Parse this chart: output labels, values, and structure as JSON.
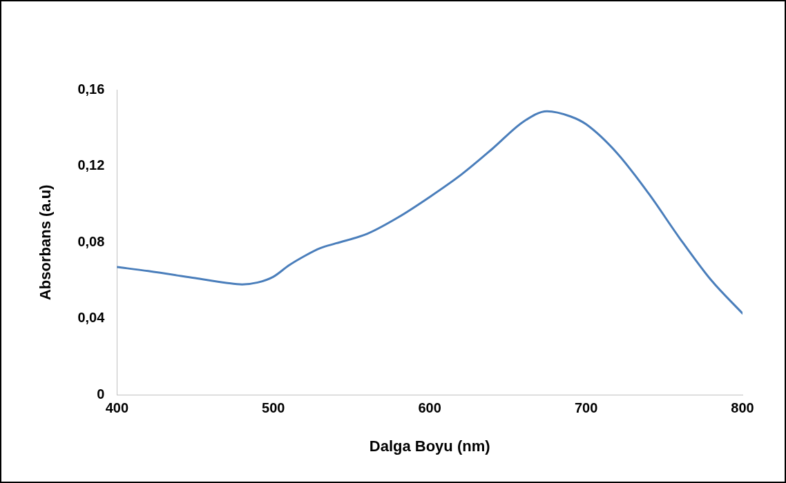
{
  "chart_data": {
    "type": "line",
    "xlabel": "Dalga Boyu (nm)",
    "ylabel": "Absorbans (a.u)",
    "x": [
      400,
      420,
      450,
      470,
      480,
      490,
      500,
      510,
      520,
      530,
      540,
      560,
      580,
      600,
      620,
      640,
      660,
      675,
      690,
      700,
      720,
      740,
      760,
      780,
      800
    ],
    "series": [
      {
        "color": "#4a7ebb",
        "values": [
          0.0671,
          0.065,
          0.0613,
          0.0588,
          0.058,
          0.059,
          0.062,
          0.068,
          0.0729,
          0.077,
          0.0795,
          0.0845,
          0.0932,
          0.1038,
          0.1154,
          0.129,
          0.1433,
          0.1487,
          0.146,
          0.1419,
          0.1266,
          0.1056,
          0.082,
          0.0602,
          0.0428
        ]
      }
    ],
    "xlim": [
      400,
      800
    ],
    "xticks": [
      400,
      500,
      600,
      700,
      800
    ],
    "ylim": [
      0,
      0.16
    ],
    "yticks": [
      0,
      {
        "value": 0.04,
        "label": "0,04"
      },
      {
        "value": 0.08,
        "label": "0,08"
      },
      {
        "value": 0.12,
        "label": "0,12"
      },
      {
        "value": 0.16,
        "label": "0,16"
      }
    ],
    "grid": false,
    "legend": false,
    "marker": "none",
    "line_style": "solid"
  }
}
